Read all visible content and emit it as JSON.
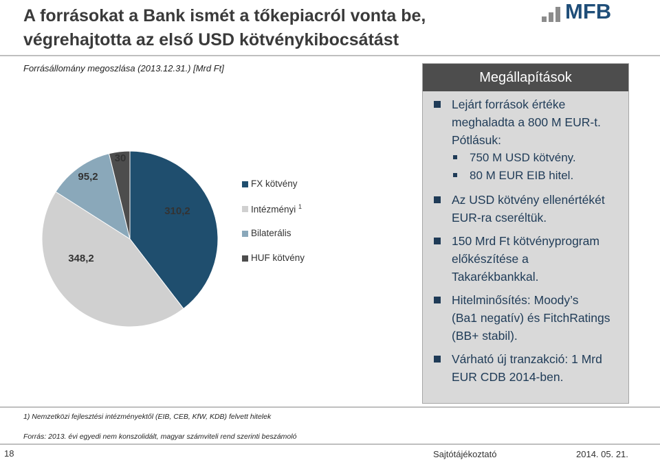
{
  "header": {
    "title_line1": "A forrásokat a Bank ismét a tőkepiacról vonta be,",
    "title_line2": "végrehajtotta az első USD kötvénykibocsátást",
    "logo_text": "MFB"
  },
  "chart_data": {
    "type": "pie",
    "title": "Forrásállomány megoszlása (2013.12.31.) [Mrd Ft]",
    "categories": [
      "FX kötvény",
      "Intézményi",
      "Bilaterális",
      "HUF kötvény"
    ],
    "legend_superscripts": [
      "",
      "1",
      "",
      ""
    ],
    "values": [
      310.2,
      348.2,
      95.2,
      30
    ],
    "value_labels": [
      "310,2",
      "348,2",
      "95,2",
      "30"
    ],
    "colors": [
      "#1f4e6e",
      "#d0d0d0",
      "#8aa8ba",
      "#4d4d4d"
    ],
    "legend_placement": "right"
  },
  "panel": {
    "heading": "Megállapítások",
    "bullets": [
      {
        "lines": [
          "Lejárt források értéke",
          "meghaladta a 800 M EUR-t.",
          "Pótlásuk:"
        ]
      },
      {
        "lines": [
          "Az USD kötvény ellenértékét",
          "EUR-ra cseréltük."
        ]
      },
      {
        "lines": [
          "150 Mrd Ft kötvényprogram",
          "előkészítése a",
          "Takarékbankkal."
        ]
      },
      {
        "lines": [
          "Hitelminősítés: Moody’s",
          "(Ba1 negatív) és FitchRatings",
          "(BB+ stabil)."
        ]
      },
      {
        "lines": [
          "Várható új tranzakció: 1 Mrd",
          "EUR CDB 2014-ben."
        ]
      }
    ],
    "subbullets": [
      "750 M USD kötvény.",
      "80 M EUR EIB hitel."
    ]
  },
  "footnotes": {
    "note1": "1) Nemzetközi fejlesztési intézményektől (EIB, CEB, KfW, KDB) felvett hitelek",
    "source": "Forrás: 2013. évi egyedi nem konszolidált, magyar számviteli rend szerinti beszámoló"
  },
  "footer": {
    "page_number": "18",
    "label": "Sajtótájékoztató",
    "date": "2014. 05. 21."
  }
}
